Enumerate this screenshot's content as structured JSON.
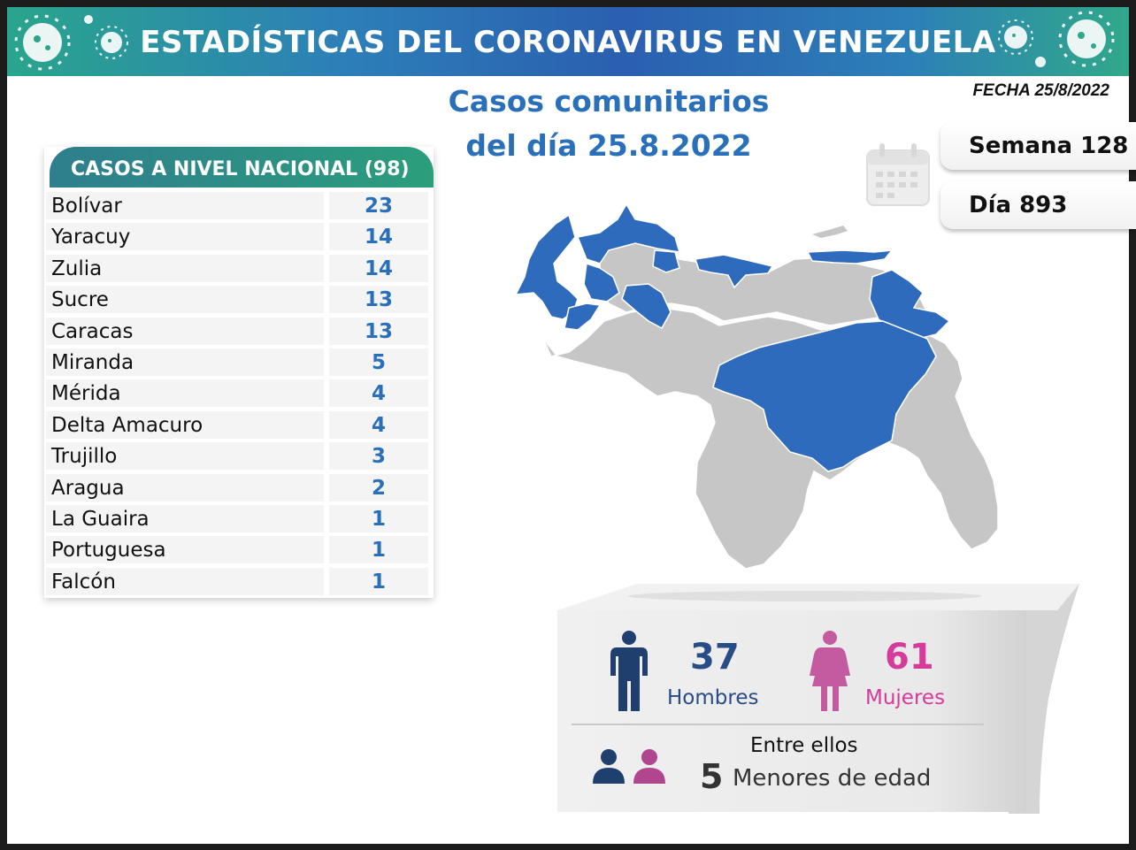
{
  "banner": {
    "title": "ESTADÍSTICAS DEL CORONAVIRUS EN VENEZUELA"
  },
  "subtitle": {
    "line1": "Casos comunitarios",
    "line2": "del día 25.8.2022"
  },
  "fecha": "FECHA 25/8/2022",
  "semana": "Semana 128",
  "dia": "Día 893",
  "table": {
    "header": "CASOS A NIVEL NACIONAL  (98)",
    "rows": [
      {
        "name": "Bolívar",
        "value": "23"
      },
      {
        "name": "Yaracuy",
        "value": "14"
      },
      {
        "name": "Zulia",
        "value": "14"
      },
      {
        "name": "Sucre",
        "value": "13"
      },
      {
        "name": "Caracas",
        "value": "13"
      },
      {
        "name": "Miranda",
        "value": "5"
      },
      {
        "name": "Mérida",
        "value": "4"
      },
      {
        "name": "Delta Amacuro",
        "value": "4"
      },
      {
        "name": "Trujillo",
        "value": "3"
      },
      {
        "name": "Aragua",
        "value": "2"
      },
      {
        "name": "La Guaira",
        "value": "1"
      },
      {
        "name": "Portuguesa",
        "value": "1"
      },
      {
        "name": "Falcón",
        "value": "1"
      }
    ]
  },
  "stats": {
    "men_count": "37",
    "men_label": "Hombres",
    "women_count": "61",
    "women_label": "Mujeres",
    "minors_intro": "Entre ellos",
    "minors_count": "5",
    "minors_label": "Menores de edad"
  },
  "colors": {
    "accent_blue": "#2a6fb9",
    "map_highlight": "#2f6bbd",
    "map_base": "#c6c6c6",
    "men": "#1f3f6e",
    "women": "#d63a9a",
    "banner_green": "#2aa58c"
  },
  "icons": [
    "virus-icon",
    "calendar-icon",
    "man-icon",
    "woman-icon",
    "children-icon"
  ]
}
